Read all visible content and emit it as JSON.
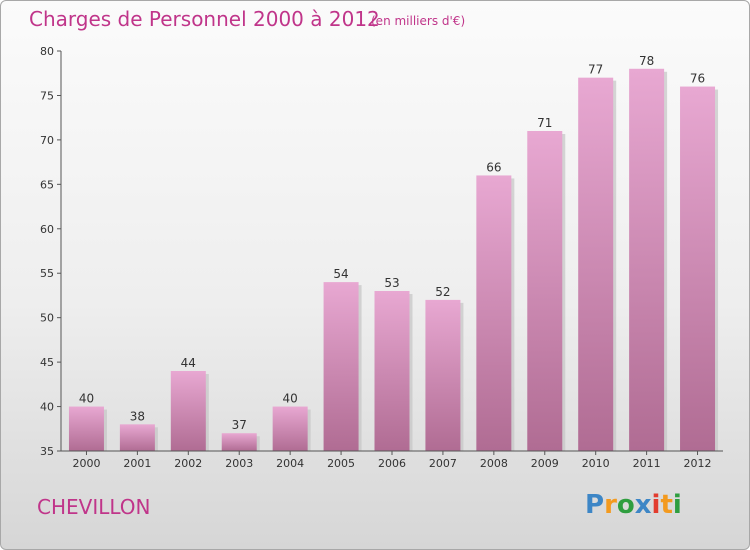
{
  "header": {
    "title": "Charges de Personnel 2000 à 2012",
    "subtitle": "(en milliers d'€)"
  },
  "footer": {
    "town": "CHEVILLON",
    "logo_letters": [
      "P",
      "r",
      "o",
      "x",
      "i",
      "t",
      "i"
    ],
    "logo_colors": [
      "#3d86c6",
      "#f39a1e",
      "#2f9e3f",
      "#3d86c6",
      "#e23c2e",
      "#f39a1e",
      "#2f9e3f"
    ]
  },
  "colors": {
    "bar_top": "#e8a8d2",
    "bar_bottom": "#b06c93",
    "accent": "#c0358a"
  },
  "chart_data": {
    "type": "bar",
    "title": "Charges de Personnel 2000 à 2012",
    "subtitle": "(en milliers d'€)",
    "xlabel": "",
    "ylabel": "",
    "categories": [
      "2000",
      "2001",
      "2002",
      "2003",
      "2004",
      "2005",
      "2006",
      "2007",
      "2008",
      "2009",
      "2010",
      "2011",
      "2012"
    ],
    "values": [
      40,
      38,
      44,
      37,
      40,
      54,
      53,
      52,
      66,
      71,
      77,
      78,
      76
    ],
    "ylim": [
      35,
      80
    ],
    "yticks": [
      35,
      40,
      45,
      50,
      55,
      60,
      65,
      70,
      75,
      80
    ],
    "grid": false,
    "legend": "none"
  }
}
